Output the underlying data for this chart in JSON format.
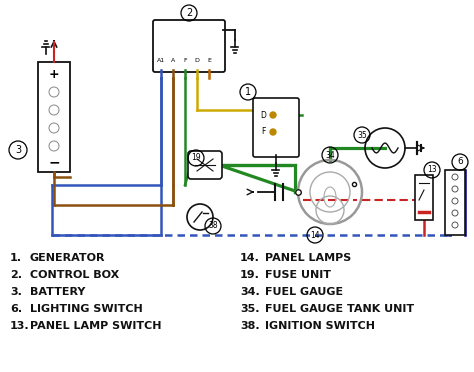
{
  "bg_color": "#ffffff",
  "wire_blue": "#3355bb",
  "wire_brown": "#8B5010",
  "wire_green": "#228822",
  "wire_yellow": "#ccaa00",
  "wire_red": "#cc2222",
  "wire_black": "#111111",
  "wire_darkblue": "#000088",
  "legend_col1": [
    {
      "num": "1.",
      "text": "GENERATOR"
    },
    {
      "num": "2.",
      "text": "CONTROL BOX"
    },
    {
      "num": "3.",
      "text": "BATTERY"
    },
    {
      "num": "6.",
      "text": "LIGHTING SWITCH"
    },
    {
      "num": "13.",
      "text": "PANEL LAMP SWITCH"
    }
  ],
  "legend_col2": [
    {
      "num": "14.",
      "text": "PANEL LAMPS"
    },
    {
      "num": "19.",
      "text": "FUSE UNIT"
    },
    {
      "num": "34.",
      "text": "FUEL GAUGE"
    },
    {
      "num": "35.",
      "text": "FUEL GAUGE TANK UNIT"
    },
    {
      "num": "38.",
      "text": "IGNITION SWITCH"
    }
  ]
}
